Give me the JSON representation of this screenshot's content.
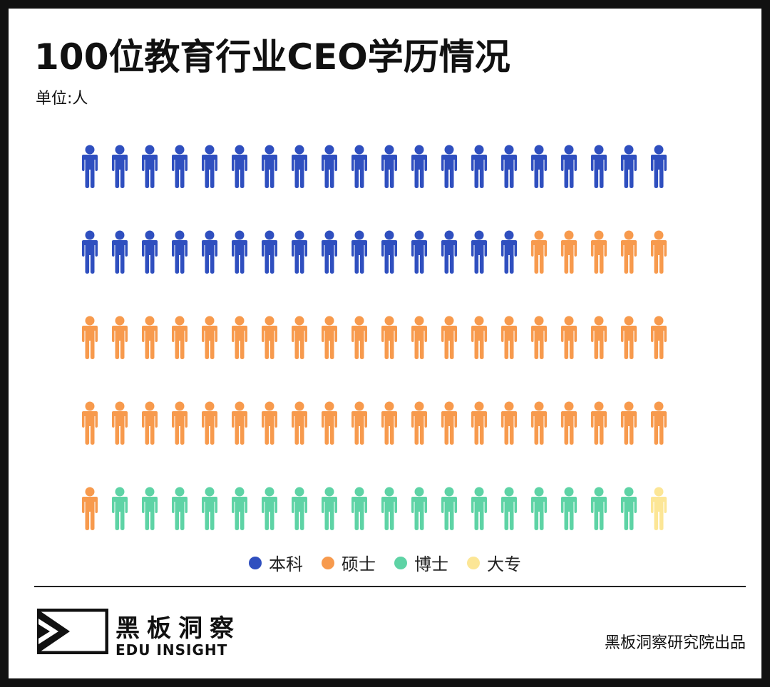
{
  "title": "100位教育行业CEO学历情况",
  "unit": "单位:人",
  "chart_data": {
    "type": "pictograph",
    "title": "100位教育行业CEO学历情况",
    "unit": "单位:人",
    "categories": [
      "本科",
      "硕士",
      "博士",
      "大专"
    ],
    "values": [
      35,
      46,
      18,
      1
    ],
    "colors": [
      "#2F4FBF",
      "#F79A4D",
      "#5ED3A5",
      "#FCE696"
    ],
    "rows": 5,
    "per_row": 20,
    "legend_position": "bottom-center"
  },
  "legend": [
    {
      "label": "本科",
      "color": "#2F4FBF"
    },
    {
      "label": "硕士",
      "color": "#F79A4D"
    },
    {
      "label": "博士",
      "color": "#5ED3A5"
    },
    {
      "label": "大专",
      "color": "#FCE696"
    }
  ],
  "brand": {
    "name_cn": "黑板洞察",
    "name_en": "EDU INSIGHT",
    "logo_icon": "eye-chevron-logo"
  },
  "credit": "黑板洞察研究院出品"
}
